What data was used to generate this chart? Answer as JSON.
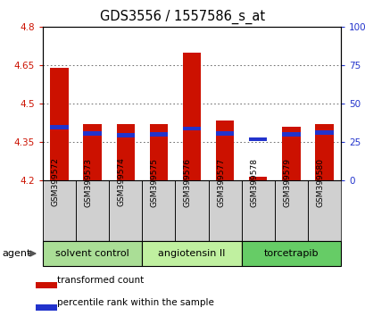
{
  "title": "GDS3556 / 1557586_s_at",
  "samples": [
    "GSM399572",
    "GSM399573",
    "GSM399574",
    "GSM399575",
    "GSM399576",
    "GSM399577",
    "GSM399578",
    "GSM399579",
    "GSM399580"
  ],
  "red_values": [
    4.638,
    4.42,
    4.42,
    4.42,
    4.7,
    4.435,
    4.215,
    4.41,
    4.42
  ],
  "blue_values": [
    4.4,
    4.375,
    4.368,
    4.372,
    4.395,
    4.375,
    4.352,
    4.372,
    4.378
  ],
  "blue_heights": [
    0.016,
    0.016,
    0.016,
    0.016,
    0.016,
    0.016,
    0.016,
    0.016,
    0.016
  ],
  "ymin": 4.2,
  "ymax": 4.8,
  "y_ticks": [
    4.2,
    4.35,
    4.5,
    4.65,
    4.8
  ],
  "y_tick_labels": [
    "4.2",
    "4.35",
    "4.5",
    "4.65",
    "4.8"
  ],
  "y2_ticks": [
    0,
    25,
    50,
    75,
    100
  ],
  "y2_tick_labels": [
    "0",
    "25",
    "50",
    "75",
    "100%"
  ],
  "groups": [
    {
      "label": "solvent control",
      "indices": [
        0,
        1,
        2
      ],
      "color": "#aade96"
    },
    {
      "label": "angiotensin II",
      "indices": [
        3,
        4,
        5
      ],
      "color": "#c0f0a0"
    },
    {
      "label": "torcetrapib",
      "indices": [
        6,
        7,
        8
      ],
      "color": "#66cc66"
    }
  ],
  "bar_width": 0.55,
  "red_color": "#cc1100",
  "blue_color": "#2233cc",
  "base_value": 4.2,
  "grid_color": "#555555",
  "bg_plot_color": "#ffffff",
  "sample_box_color": "#d0d0d0",
  "left_tick_color": "#cc1100",
  "right_tick_color": "#2233cc",
  "legend_red": "transformed count",
  "legend_blue": "percentile rank within the sample",
  "title_fontsize": 10.5,
  "tick_fontsize": 7.5,
  "sample_fontsize": 6.5,
  "group_fontsize": 8,
  "legend_fontsize": 7.5
}
